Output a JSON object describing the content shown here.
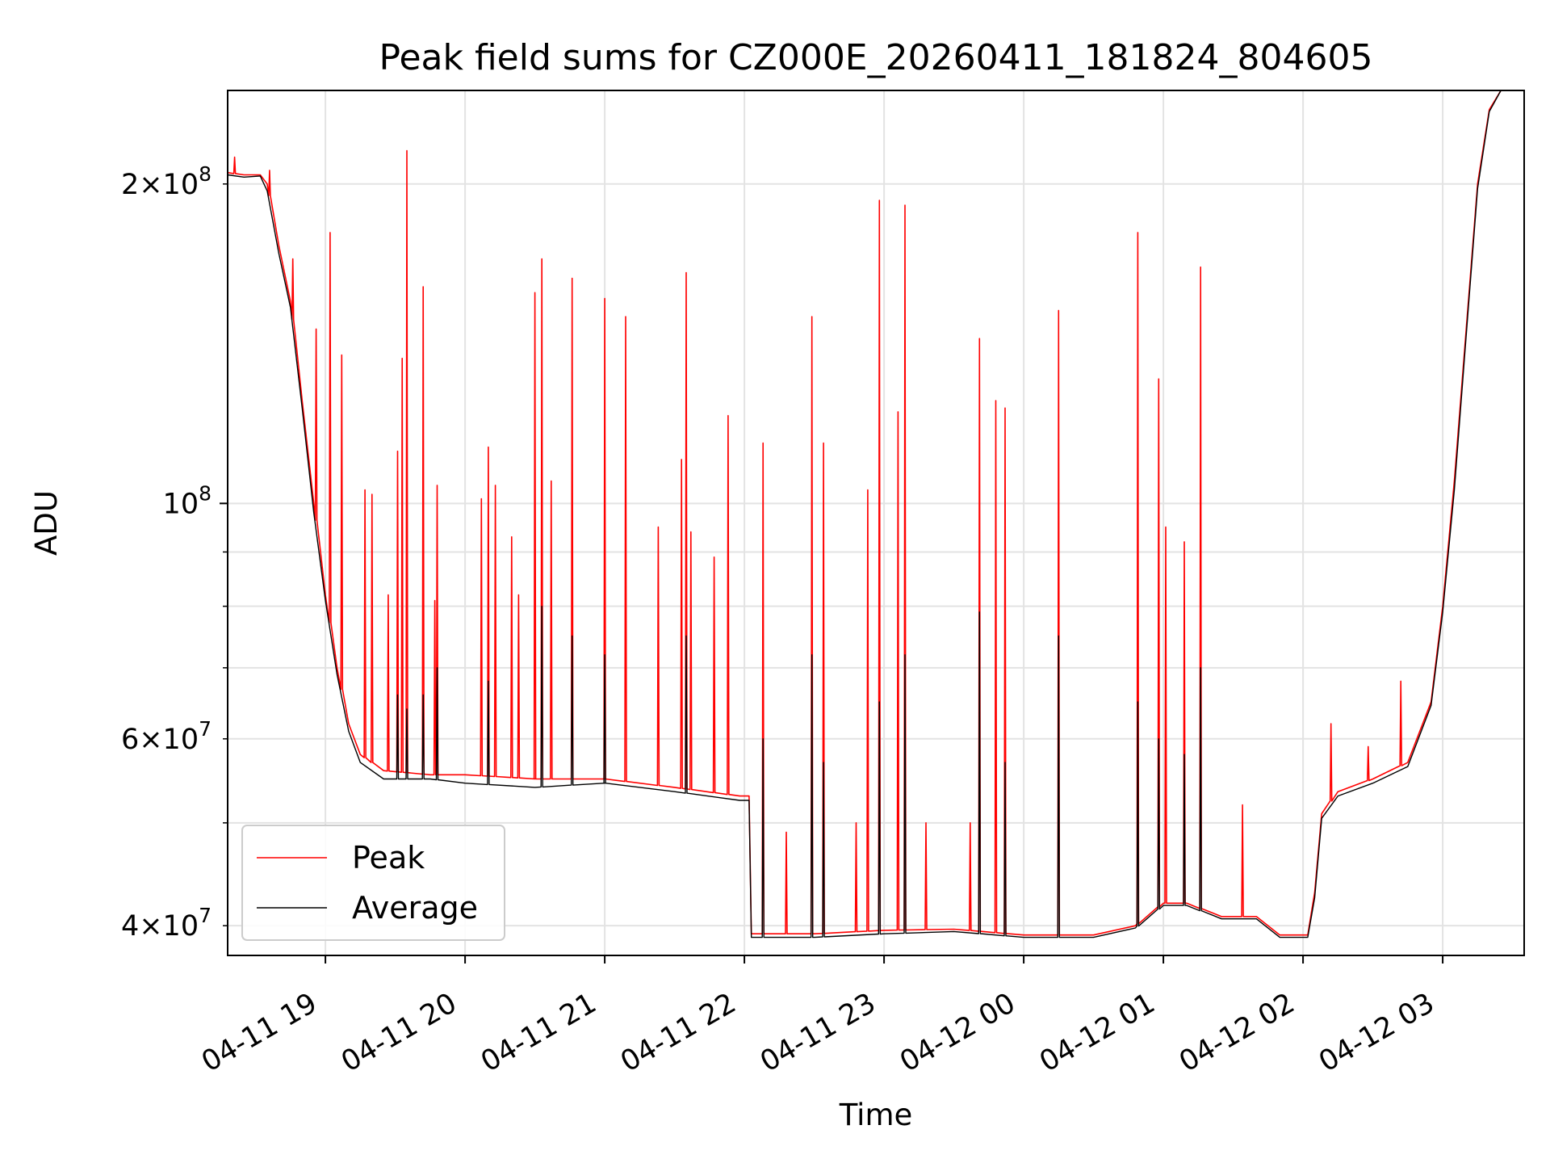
{
  "chart_data": {
    "type": "line",
    "title": "Peak field sums for CZ000E_20260411_181824_804605",
    "xlabel": "Time",
    "ylabel": "ADU",
    "x_type": "datetime",
    "xlim": [
      "2026-04-11 18:18",
      "2026-04-12 03:35"
    ],
    "x_ticks": [
      "2026-04-11 19:00",
      "2026-04-11 20:00",
      "2026-04-11 21:00",
      "2026-04-11 22:00",
      "2026-04-11 23:00",
      "2026-04-12 00:00",
      "2026-04-12 01:00",
      "2026-04-12 02:00",
      "2026-04-12 03:00"
    ],
    "x_tick_labels": [
      "04-11 19",
      "04-11 20",
      "04-11 21",
      "04-11 22",
      "04-11 23",
      "04-12 00",
      "04-12 01",
      "04-12 02",
      "04-12 03"
    ],
    "y_scale": "log",
    "ylim": [
      37500000,
      245000000
    ],
    "y_ticks_major": [
      100000000
    ],
    "y_ticks_minor": [
      40000000,
      50000000,
      60000000,
      70000000,
      80000000,
      90000000,
      200000000
    ],
    "y_tick_labels": [
      {
        "value": 200000000,
        "mantissa": "2",
        "exponent": "8"
      },
      {
        "value": 100000000,
        "mantissa": "",
        "exponent": "8"
      },
      {
        "value": 60000000,
        "mantissa": "6",
        "exponent": "7"
      },
      {
        "value": 40000000,
        "mantissa": "4",
        "exponent": "7"
      }
    ],
    "grid": true,
    "legend_position": "lower-left",
    "series": [
      {
        "name": "Peak",
        "color": "#ff0000",
        "points": [
          [
            "2026-04-11 18:18",
            205000000
          ],
          [
            "2026-04-11 18:25",
            204000000
          ],
          [
            "2026-04-11 18:32",
            204000000
          ],
          [
            "2026-04-11 18:35",
            200000000
          ],
          [
            "2026-04-11 18:40",
            175000000
          ],
          [
            "2026-04-11 18:45",
            155000000
          ],
          [
            "2026-04-11 18:50",
            125000000
          ],
          [
            "2026-04-11 18:55",
            100000000
          ],
          [
            "2026-04-11 19:00",
            82000000
          ],
          [
            "2026-04-11 19:05",
            70000000
          ],
          [
            "2026-04-11 19:10",
            62000000
          ],
          [
            "2026-04-11 19:15",
            58000000
          ],
          [
            "2026-04-11 19:25",
            56000000
          ],
          [
            "2026-04-11 19:45",
            55500000
          ],
          [
            "2026-04-11 20:00",
            55500000
          ],
          [
            "2026-04-11 20:30",
            55000000
          ],
          [
            "2026-04-11 21:00",
            55000000
          ],
          [
            "2026-04-11 21:30",
            54000000
          ],
          [
            "2026-04-11 21:58",
            53000000
          ],
          [
            "2026-04-11 22:02",
            53000000
          ],
          [
            "2026-04-11 22:03",
            39300000
          ],
          [
            "2026-04-11 22:30",
            39300000
          ],
          [
            "2026-04-11 23:00",
            39600000
          ],
          [
            "2026-04-11 23:30",
            39700000
          ],
          [
            "2026-04-12 00:00",
            39200000
          ],
          [
            "2026-04-12 00:30",
            39200000
          ],
          [
            "2026-04-12 00:48",
            40000000
          ],
          [
            "2026-04-12 01:00",
            42000000
          ],
          [
            "2026-04-12 01:10",
            42000000
          ],
          [
            "2026-04-12 01:25",
            40800000
          ],
          [
            "2026-04-12 01:40",
            40800000
          ],
          [
            "2026-04-12 01:50",
            39200000
          ],
          [
            "2026-04-12 02:02",
            39200000
          ],
          [
            "2026-04-12 02:05",
            43000000
          ],
          [
            "2026-04-12 02:08",
            51000000
          ],
          [
            "2026-04-12 02:15",
            53500000
          ],
          [
            "2026-04-12 02:30",
            55000000
          ],
          [
            "2026-04-12 02:45",
            57000000
          ],
          [
            "2026-04-12 02:55",
            65000000
          ],
          [
            "2026-04-12 03:00",
            80000000
          ],
          [
            "2026-04-12 03:05",
            105000000
          ],
          [
            "2026-04-12 03:10",
            145000000
          ],
          [
            "2026-04-12 03:15",
            200000000
          ],
          [
            "2026-04-12 03:20",
            235000000
          ],
          [
            "2026-04-12 03:25",
            245000000
          ],
          [
            "2026-04-12 03:35",
            245000000
          ]
        ],
        "spikes": [
          [
            "2026-04-11 18:21",
            212000000
          ],
          [
            "2026-04-11 18:36",
            206000000
          ],
          [
            "2026-04-11 18:46",
            170000000
          ],
          [
            "2026-04-11 18:56",
            146000000
          ],
          [
            "2026-04-11 19:02",
            180000000
          ],
          [
            "2026-04-11 19:07",
            138000000
          ],
          [
            "2026-04-11 19:17",
            103000000
          ],
          [
            "2026-04-11 19:20",
            102000000
          ],
          [
            "2026-04-11 19:27",
            82000000
          ],
          [
            "2026-04-11 19:31",
            112000000
          ],
          [
            "2026-04-11 19:33",
            137000000
          ],
          [
            "2026-04-11 19:35",
            215000000
          ],
          [
            "2026-04-11 19:42",
            160000000
          ],
          [
            "2026-04-11 19:47",
            81000000
          ],
          [
            "2026-04-11 19:48",
            104000000
          ],
          [
            "2026-04-11 20:07",
            101000000
          ],
          [
            "2026-04-11 20:10",
            113000000
          ],
          [
            "2026-04-11 20:13",
            104000000
          ],
          [
            "2026-04-11 20:20",
            93000000
          ],
          [
            "2026-04-11 20:23",
            82000000
          ],
          [
            "2026-04-11 20:30",
            158000000
          ],
          [
            "2026-04-11 20:33",
            170000000
          ],
          [
            "2026-04-11 20:37",
            105000000
          ],
          [
            "2026-04-11 20:46",
            163000000
          ],
          [
            "2026-04-11 21:00",
            156000000
          ],
          [
            "2026-04-11 21:09",
            150000000
          ],
          [
            "2026-04-11 21:23",
            95000000
          ],
          [
            "2026-04-11 21:33",
            110000000
          ],
          [
            "2026-04-11 21:35",
            165000000
          ],
          [
            "2026-04-11 21:37",
            94000000
          ],
          [
            "2026-04-11 21:47",
            89000000
          ],
          [
            "2026-04-11 21:53",
            121000000
          ],
          [
            "2026-04-11 22:08",
            114000000
          ],
          [
            "2026-04-11 22:18",
            49000000
          ],
          [
            "2026-04-11 22:29",
            150000000
          ],
          [
            "2026-04-11 22:34",
            114000000
          ],
          [
            "2026-04-11 22:48",
            50000000
          ],
          [
            "2026-04-11 22:53",
            103000000
          ],
          [
            "2026-04-11 22:58",
            193000000
          ],
          [
            "2026-04-11 23:06",
            122000000
          ],
          [
            "2026-04-11 23:09",
            191000000
          ],
          [
            "2026-04-11 23:18",
            50000000
          ],
          [
            "2026-04-11 23:37",
            50000000
          ],
          [
            "2026-04-11 23:41",
            143000000
          ],
          [
            "2026-04-11 23:48",
            125000000
          ],
          [
            "2026-04-11 23:52",
            123000000
          ],
          [
            "2026-04-12 00:15",
            152000000
          ],
          [
            "2026-04-12 00:49",
            180000000
          ],
          [
            "2026-04-12 00:58",
            131000000
          ],
          [
            "2026-04-12 01:01",
            95000000
          ],
          [
            "2026-04-12 01:09",
            92000000
          ],
          [
            "2026-04-12 01:16",
            167000000
          ],
          [
            "2026-04-12 01:34",
            52000000
          ],
          [
            "2026-04-12 02:12",
            62000000
          ],
          [
            "2026-04-12 02:28",
            59000000
          ],
          [
            "2026-04-12 02:42",
            68000000
          ]
        ]
      },
      {
        "name": "Average",
        "color": "#000000",
        "points": [
          [
            "2026-04-11 18:18",
            204000000
          ],
          [
            "2026-04-11 18:25",
            203000000
          ],
          [
            "2026-04-11 18:32",
            203500000
          ],
          [
            "2026-04-11 18:35",
            197000000
          ],
          [
            "2026-04-11 18:40",
            172000000
          ],
          [
            "2026-04-11 18:45",
            153000000
          ],
          [
            "2026-04-11 18:50",
            123000000
          ],
          [
            "2026-04-11 18:55",
            98000000
          ],
          [
            "2026-04-11 19:00",
            81000000
          ],
          [
            "2026-04-11 19:05",
            69000000
          ],
          [
            "2026-04-11 19:10",
            61000000
          ],
          [
            "2026-04-11 19:15",
            57000000
          ],
          [
            "2026-04-11 19:25",
            55000000
          ],
          [
            "2026-04-11 19:45",
            55000000
          ],
          [
            "2026-04-11 20:00",
            54500000
          ],
          [
            "2026-04-11 20:30",
            54000000
          ],
          [
            "2026-04-11 21:00",
            54500000
          ],
          [
            "2026-04-11 21:30",
            53500000
          ],
          [
            "2026-04-11 21:58",
            52500000
          ],
          [
            "2026-04-11 22:02",
            52500000
          ],
          [
            "2026-04-11 22:03",
            39000000
          ],
          [
            "2026-04-11 22:30",
            39000000
          ],
          [
            "2026-04-11 23:00",
            39300000
          ],
          [
            "2026-04-11 23:30",
            39500000
          ],
          [
            "2026-04-12 00:00",
            39000000
          ],
          [
            "2026-04-12 00:30",
            39000000
          ],
          [
            "2026-04-12 00:48",
            39800000
          ],
          [
            "2026-04-12 01:00",
            41800000
          ],
          [
            "2026-04-12 01:10",
            41800000
          ],
          [
            "2026-04-12 01:25",
            40600000
          ],
          [
            "2026-04-12 01:40",
            40600000
          ],
          [
            "2026-04-12 01:50",
            39000000
          ],
          [
            "2026-04-12 02:02",
            39000000
          ],
          [
            "2026-04-12 02:05",
            42500000
          ],
          [
            "2026-04-12 02:08",
            50500000
          ],
          [
            "2026-04-12 02:15",
            53000000
          ],
          [
            "2026-04-12 02:30",
            54500000
          ],
          [
            "2026-04-12 02:45",
            56500000
          ],
          [
            "2026-04-12 02:55",
            64500000
          ],
          [
            "2026-04-12 03:00",
            79000000
          ],
          [
            "2026-04-12 03:05",
            103000000
          ],
          [
            "2026-04-12 03:10",
            143000000
          ],
          [
            "2026-04-12 03:15",
            198000000
          ],
          [
            "2026-04-12 03:20",
            234000000
          ],
          [
            "2026-04-12 03:25",
            245000000
          ],
          [
            "2026-04-12 03:35",
            245000000
          ]
        ],
        "spikes": [
          [
            "2026-04-11 19:31",
            66000000
          ],
          [
            "2026-04-11 19:35",
            64000000
          ],
          [
            "2026-04-11 19:42",
            66000000
          ],
          [
            "2026-04-11 19:48",
            70000000
          ],
          [
            "2026-04-11 20:10",
            68000000
          ],
          [
            "2026-04-11 20:33",
            80000000
          ],
          [
            "2026-04-11 20:46",
            75000000
          ],
          [
            "2026-04-11 21:00",
            72000000
          ],
          [
            "2026-04-11 21:35",
            75000000
          ],
          [
            "2026-04-11 22:08",
            60000000
          ],
          [
            "2026-04-11 22:29",
            72000000
          ],
          [
            "2026-04-11 22:34",
            57000000
          ],
          [
            "2026-04-11 22:58",
            65000000
          ],
          [
            "2026-04-11 23:09",
            72000000
          ],
          [
            "2026-04-11 23:41",
            79000000
          ],
          [
            "2026-04-11 23:52",
            57000000
          ],
          [
            "2026-04-12 00:15",
            75000000
          ],
          [
            "2026-04-12 00:49",
            65000000
          ],
          [
            "2026-04-12 00:58",
            60000000
          ],
          [
            "2026-04-12 01:09",
            58000000
          ],
          [
            "2026-04-12 01:16",
            70000000
          ]
        ]
      }
    ]
  }
}
